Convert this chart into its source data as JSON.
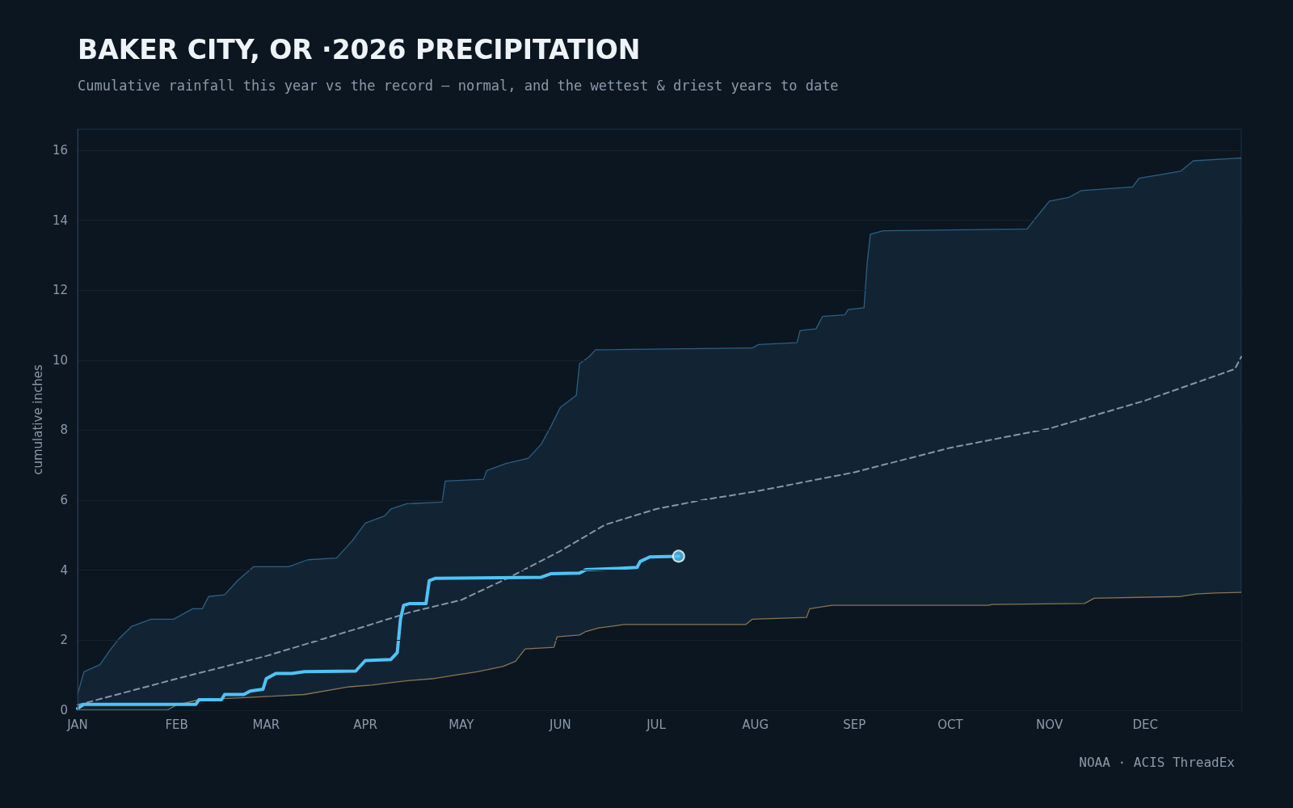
{
  "chart_data": {
    "type": "line",
    "title": "BAKER CITY, OR ·2026 PRECIPITATION",
    "subtitle": "Cumulative rainfall this year vs the record — normal, and the wettest & driest years to date",
    "ylabel": "cumulative inches",
    "annotations": [
      "NOAA · ACIS ThreadEx"
    ],
    "xlim": [
      "--01-01",
      "--12-31"
    ],
    "xticks": [
      {
        "value": "--01-01",
        "label": "JAN"
      },
      {
        "value": "--02-01",
        "label": "FEB"
      },
      {
        "value": "--03-01",
        "label": "MAR"
      },
      {
        "value": "--04-01",
        "label": "APR"
      },
      {
        "value": "--05-01",
        "label": "MAY"
      },
      {
        "value": "--06-01",
        "label": "JUN"
      },
      {
        "value": "--07-01",
        "label": "JUL"
      },
      {
        "value": "--08-01",
        "label": "AUG"
      },
      {
        "value": "--09-01",
        "label": "SEP"
      },
      {
        "value": "--10-01",
        "label": "OCT"
      },
      {
        "value": "--11-01",
        "label": "NOV"
      },
      {
        "value": "--12-01",
        "label": "DEC"
      }
    ],
    "ylim": [
      0,
      16.6
    ],
    "yticks": [
      0,
      2,
      4,
      6,
      8,
      10,
      12,
      14,
      16
    ],
    "grid": "y",
    "series": [
      {
        "type": "area",
        "color": "#2b5f86",
        "x": [
          "--01-01",
          "--01-03",
          "--01-08",
          "--01-11",
          "--01-14",
          "--01-18",
          "--01-24",
          "--01-31",
          "--02-06",
          "--02-09",
          "--02-11",
          "--02-16",
          "--02-20",
          "--02-25",
          "--03-08",
          "--03-14",
          "--03-23",
          "--03-28",
          "--04-01",
          "--04-07",
          "--04-09",
          "--04-14",
          "--04-25",
          "--04-26",
          "--05-08",
          "--05-09",
          "--05-15",
          "--05-22",
          "--05-26",
          "--05-29",
          "--06-01",
          "--06-06",
          "--06-07",
          "--06-10",
          "--06-12",
          "--07-31",
          "--08-02",
          "--08-14",
          "--08-15",
          "--08-20",
          "--08-22",
          "--08-29",
          "--08-30",
          "--09-04",
          "--09-05",
          "--09-06",
          "--09-10",
          "--10-25",
          "--10-28",
          "--11-01",
          "--11-07",
          "--11-11",
          "--11-27",
          "--11-29",
          "--12-12",
          "--12-16",
          "--12-31"
        ],
        "values": [
          0.45,
          1.1,
          1.3,
          1.7,
          2.05,
          2.4,
          2.6,
          2.6,
          2.9,
          2.9,
          3.25,
          3.3,
          3.7,
          4.1,
          4.1,
          4.3,
          4.35,
          4.85,
          5.35,
          5.55,
          5.75,
          5.9,
          5.95,
          6.55,
          6.6,
          6.85,
          7.05,
          7.2,
          7.6,
          8.1,
          8.65,
          9.0,
          9.9,
          10.1,
          10.3,
          10.35,
          10.45,
          10.5,
          10.85,
          10.9,
          11.25,
          11.3,
          11.45,
          11.5,
          12.8,
          13.6,
          13.7,
          13.75,
          14.1,
          14.55,
          14.65,
          14.85,
          14.95,
          15.2,
          15.4,
          15.7,
          15.78
        ]
      },
      {
        "type": "area",
        "color": "#8a7452",
        "x": [
          "--01-01",
          "--01-29",
          "--02-01",
          "--02-08",
          "--02-20",
          "--03-03",
          "--03-13",
          "--03-27",
          "--04-03",
          "--04-10",
          "--04-15",
          "--04-22",
          "--04-29",
          "--05-06",
          "--05-14",
          "--05-18",
          "--05-21",
          "--05-30",
          "--05-31",
          "--06-07",
          "--06-09",
          "--06-13",
          "--06-21",
          "--07-29",
          "--07-31",
          "--08-17",
          "--08-18",
          "--08-25",
          "--10-13",
          "--10-14",
          "--11-12",
          "--11-15",
          "--12-12",
          "--12-17",
          "--12-23",
          "--12-31"
        ],
        "values": [
          0,
          0,
          0.15,
          0.3,
          0.35,
          0.4,
          0.45,
          0.67,
          0.72,
          0.8,
          0.85,
          0.9,
          1.0,
          1.1,
          1.25,
          1.4,
          1.75,
          1.8,
          2.1,
          2.15,
          2.25,
          2.35,
          2.45,
          2.45,
          2.6,
          2.65,
          2.9,
          3.0,
          3.0,
          3.02,
          3.05,
          3.2,
          3.25,
          3.32,
          3.35,
          3.37
        ]
      },
      {
        "color": "#8796a6",
        "line_style": "dashed",
        "x": [
          "--01-01",
          "--02-01",
          "--03-01",
          "--04-01",
          "--04-15",
          "--05-01",
          "--05-15",
          "--06-01",
          "--06-15",
          "--07-01",
          "--07-15",
          "--08-01",
          "--09-01",
          "--10-01",
          "--11-01",
          "--12-01",
          "--12-29",
          "--12-31"
        ],
        "values": [
          0.15,
          0.9,
          1.55,
          2.4,
          2.8,
          3.15,
          3.75,
          4.55,
          5.3,
          5.75,
          6.0,
          6.25,
          6.8,
          7.5,
          8.05,
          8.85,
          9.75,
          10.1
        ]
      },
      {
        "color": "#4fc3f7",
        "x": [
          "--01-01",
          "--01-03",
          "--02-07",
          "--02-08",
          "--02-15",
          "--02-16",
          "--02-22",
          "--02-24",
          "--02-28",
          "--03-01",
          "--03-04",
          "--03-09",
          "--03-13",
          "--03-29",
          "--04-01",
          "--04-09",
          "--04-11",
          "--04-12",
          "--04-13",
          "--04-15",
          "--04-20",
          "--04-21",
          "--04-23",
          "--05-26",
          "--05-29",
          "--06-07",
          "--06-09",
          "--06-19",
          "--06-25",
          "--06-26",
          "--06-29",
          "--07-08"
        ],
        "values": [
          0.05,
          0.17,
          0.17,
          0.3,
          0.3,
          0.45,
          0.45,
          0.55,
          0.6,
          0.9,
          1.05,
          1.05,
          1.1,
          1.12,
          1.42,
          1.45,
          1.65,
          2.6,
          3.0,
          3.05,
          3.05,
          3.7,
          3.77,
          3.8,
          3.9,
          3.92,
          4.02,
          4.05,
          4.08,
          4.25,
          4.38,
          4.4
        ]
      },
      {
        "type": "scatter",
        "color": "#4fc3f7",
        "marker": "circle",
        "x": [
          "--07-08"
        ],
        "values": [
          4.4
        ]
      }
    ]
  }
}
